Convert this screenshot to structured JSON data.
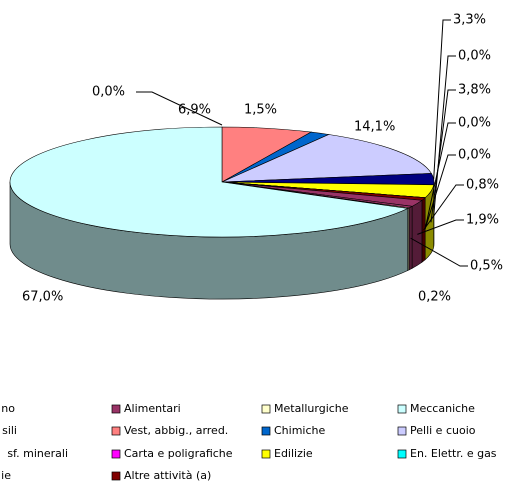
{
  "chart_data": {
    "type": "pie3d",
    "categories": [
      "no",
      "Alimentari",
      "Metallurgiche",
      "Meccaniche",
      "sili",
      "Vest, abbig., arred.",
      "Chimiche",
      "Pelli e cuoio",
      "sf. minerali",
      "Carta e poligrafiche",
      "Edilizie",
      "En. Elettr. e gas",
      "ie",
      "Altre attività (a)"
    ],
    "values": [
      1.9,
      0.5,
      0.2,
      67.0,
      0.0,
      6.9,
      1.5,
      14.1,
      3.3,
      0.0,
      3.8,
      0.0,
      0.0,
      0.8
    ],
    "value_labels": [
      "1,9%",
      "0,5%",
      "0,2%",
      "67,0%",
      "0,0%",
      "6,9%",
      "1,5%",
      "14,1%",
      "3,3%",
      "0,0%",
      "3,8%",
      "0,0%",
      "0,0%",
      "0,8%"
    ],
    "colors": [
      "#993366",
      "#993366",
      "#ffffcc",
      "#ccffff",
      "#660066",
      "#ff8080",
      "#0066cc",
      "#ccccff",
      "#000080",
      "#ff00ff",
      "#ffff00",
      "#00ffff",
      "#800080",
      "#800000"
    ],
    "legend": "bottom"
  }
}
